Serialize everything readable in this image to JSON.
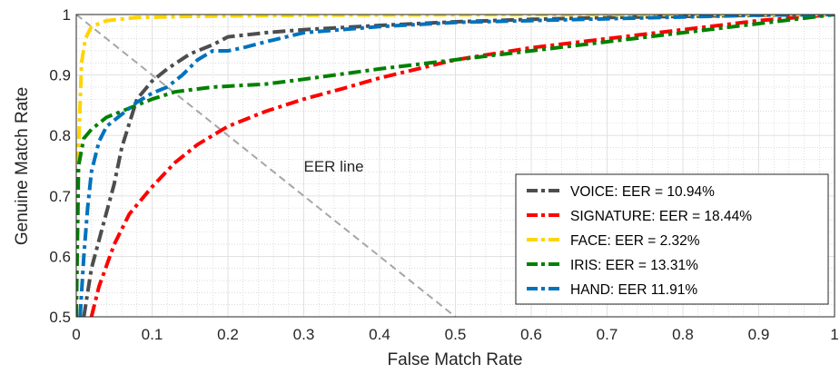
{
  "chart_data": {
    "type": "line",
    "xlabel": "False Match Rate",
    "ylabel": "Genuine Match Rate",
    "xlim": [
      0,
      1
    ],
    "ylim": [
      0.5,
      1
    ],
    "xticks": [
      "0",
      "0.1",
      "0.2",
      "0.3",
      "0.4",
      "0.5",
      "0.6",
      "0.7",
      "0.8",
      "0.9",
      "1"
    ],
    "yticks": [
      "0.5",
      "0.6",
      "0.7",
      "0.8",
      "0.9",
      "1"
    ],
    "grid": "on (major solid, minor dotted)",
    "legend_position": "bottom-right",
    "annotation": {
      "text": "EER line",
      "x": 0.3,
      "y": 0.74
    },
    "eer_line": {
      "points": [
        [
          0,
          1
        ],
        [
          0.5,
          0.5
        ]
      ],
      "color": "#a6a6a6"
    },
    "series": [
      {
        "name": "VOICE: EER = 10.94%",
        "color": "#4d4d4d",
        "points": [
          [
            0.01,
            0.5
          ],
          [
            0.02,
            0.58
          ],
          [
            0.035,
            0.65
          ],
          [
            0.05,
            0.72
          ],
          [
            0.06,
            0.78
          ],
          [
            0.07,
            0.82
          ],
          [
            0.08,
            0.86
          ],
          [
            0.1,
            0.89
          ],
          [
            0.12,
            0.91
          ],
          [
            0.15,
            0.935
          ],
          [
            0.18,
            0.95
          ],
          [
            0.2,
            0.963
          ],
          [
            0.25,
            0.97
          ],
          [
            0.3,
            0.975
          ],
          [
            0.4,
            0.982
          ],
          [
            0.5,
            0.988
          ],
          [
            0.6,
            0.992
          ],
          [
            0.7,
            0.995
          ],
          [
            0.8,
            0.997
          ],
          [
            0.9,
            0.999
          ],
          [
            1.0,
            1.0
          ]
        ]
      },
      {
        "name": "SIGNATURE: EER = 18.44%",
        "color": "#ff0000",
        "points": [
          [
            0.02,
            0.5
          ],
          [
            0.03,
            0.55
          ],
          [
            0.05,
            0.62
          ],
          [
            0.07,
            0.67
          ],
          [
            0.1,
            0.715
          ],
          [
            0.13,
            0.755
          ],
          [
            0.16,
            0.785
          ],
          [
            0.2,
            0.815
          ],
          [
            0.25,
            0.84
          ],
          [
            0.3,
            0.86
          ],
          [
            0.35,
            0.877
          ],
          [
            0.4,
            0.895
          ],
          [
            0.45,
            0.91
          ],
          [
            0.5,
            0.925
          ],
          [
            0.6,
            0.945
          ],
          [
            0.7,
            0.96
          ],
          [
            0.8,
            0.975
          ],
          [
            0.9,
            0.99
          ],
          [
            1.0,
            1.0
          ]
        ]
      },
      {
        "name": "FACE: EER = 2.32%",
        "color": "#ffd400",
        "points": [
          [
            0,
            0.5
          ],
          [
            0.003,
            0.78
          ],
          [
            0.007,
            0.92
          ],
          [
            0.012,
            0.96
          ],
          [
            0.02,
            0.98
          ],
          [
            0.04,
            0.99
          ],
          [
            0.08,
            0.995
          ],
          [
            0.15,
            0.997
          ],
          [
            0.3,
            0.999
          ],
          [
            0.6,
            1.0
          ],
          [
            1.0,
            1.0
          ]
        ]
      },
      {
        "name": "IRIS: EER = 13.31%",
        "color": "#008000",
        "points": [
          [
            0,
            0.5
          ],
          [
            0.003,
            0.75
          ],
          [
            0.01,
            0.795
          ],
          [
            0.02,
            0.81
          ],
          [
            0.04,
            0.83
          ],
          [
            0.07,
            0.845
          ],
          [
            0.1,
            0.86
          ],
          [
            0.13,
            0.872
          ],
          [
            0.18,
            0.88
          ],
          [
            0.25,
            0.885
          ],
          [
            0.3,
            0.893
          ],
          [
            0.4,
            0.91
          ],
          [
            0.5,
            0.925
          ],
          [
            0.6,
            0.94
          ],
          [
            0.7,
            0.955
          ],
          [
            0.8,
            0.97
          ],
          [
            0.9,
            0.985
          ],
          [
            1.0,
            1.0
          ]
        ]
      },
      {
        "name": "HAND: EER 11.91%",
        "color": "#0072bd",
        "points": [
          [
            0.005,
            0.5
          ],
          [
            0.01,
            0.6
          ],
          [
            0.015,
            0.68
          ],
          [
            0.02,
            0.74
          ],
          [
            0.03,
            0.79
          ],
          [
            0.04,
            0.815
          ],
          [
            0.06,
            0.835
          ],
          [
            0.08,
            0.855
          ],
          [
            0.1,
            0.87
          ],
          [
            0.12,
            0.88
          ],
          [
            0.14,
            0.9
          ],
          [
            0.16,
            0.925
          ],
          [
            0.18,
            0.94
          ],
          [
            0.2,
            0.94
          ],
          [
            0.22,
            0.945
          ],
          [
            0.25,
            0.955
          ],
          [
            0.3,
            0.97
          ],
          [
            0.4,
            0.98
          ],
          [
            0.5,
            0.987
          ],
          [
            0.6,
            0.99
          ],
          [
            0.7,
            0.993
          ],
          [
            0.8,
            0.996
          ],
          [
            0.9,
            0.999
          ],
          [
            1.0,
            1.0
          ]
        ]
      }
    ]
  }
}
